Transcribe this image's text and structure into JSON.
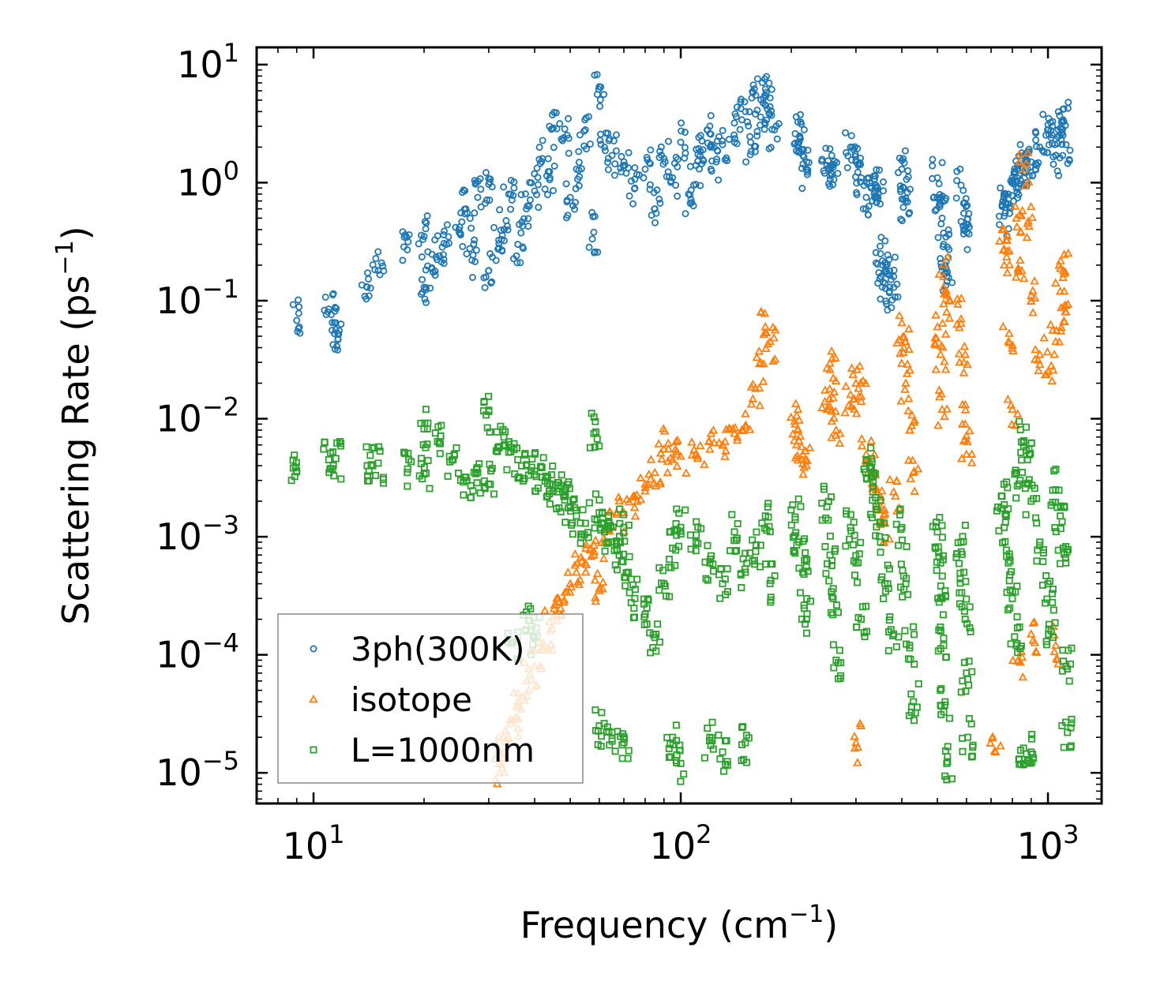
{
  "chart_data": {
    "type": "scatter",
    "xscale": "log",
    "yscale": "log",
    "xlabel": "Frequency (cm",
    "xlabel_sup": "−1",
    "xlabel_end": ")",
    "ylabel": "Scattering Rate (ps",
    "ylabel_sup": "−1",
    "ylabel_end": ")",
    "xlim": [
      7.0,
      1400
    ],
    "ylim": [
      5.5e-06,
      14
    ],
    "x_ticks": [
      {
        "value": 10,
        "base": "10",
        "exp": "1"
      },
      {
        "value": 100,
        "base": "10",
        "exp": "2"
      },
      {
        "value": 1000,
        "base": "10",
        "exp": "3"
      }
    ],
    "y_ticks": [
      {
        "value": 10,
        "base": "10",
        "exp": "1"
      },
      {
        "value": 1,
        "base": "10",
        "exp": "0"
      },
      {
        "value": 0.1,
        "base": "10",
        "exp": "−1"
      },
      {
        "value": 0.01,
        "base": "10",
        "exp": "−2"
      },
      {
        "value": 0.001,
        "base": "10",
        "exp": "−3"
      },
      {
        "value": 0.0001,
        "base": "10",
        "exp": "−4"
      },
      {
        "value": 1e-05,
        "base": "10",
        "exp": "−5"
      }
    ],
    "legend_position": "lower-left",
    "series": [
      {
        "name": "3ph(300K)",
        "marker": "circle",
        "color": "#1f77b4",
        "points": [
          [
            9,
            0.068
          ],
          [
            11,
            0.085
          ],
          [
            11.5,
            0.065
          ],
          [
            11.5,
            0.057
          ],
          [
            14,
            0.13
          ],
          [
            15,
            0.18
          ],
          [
            18,
            0.27
          ],
          [
            20,
            0.35
          ],
          [
            20,
            0.13
          ],
          [
            21,
            0.19
          ],
          [
            22,
            0.24
          ],
          [
            23,
            0.3
          ],
          [
            25,
            0.42
          ],
          [
            26,
            0.6
          ],
          [
            27,
            0.22
          ],
          [
            28,
            0.75
          ],
          [
            30,
            0.18
          ],
          [
            30,
            0.97
          ],
          [
            32,
            0.28
          ],
          [
            33,
            0.4
          ],
          [
            34,
            0.8
          ],
          [
            36,
            0.3
          ],
          [
            38,
            0.6
          ],
          [
            40,
            0.85
          ],
          [
            42,
            1.6
          ],
          [
            44,
            1.1
          ],
          [
            45,
            2.9
          ],
          [
            48,
            2.4
          ],
          [
            50,
            0.75
          ],
          [
            52,
            1.3
          ],
          [
            55,
            2.8
          ],
          [
            58,
            0.38
          ],
          [
            60,
            6.5
          ],
          [
            62,
            2.0
          ],
          [
            65,
            1.7
          ],
          [
            70,
            1.5
          ],
          [
            75,
            0.9
          ],
          [
            80,
            1.3
          ],
          [
            85,
            0.6
          ],
          [
            90,
            1.6
          ],
          [
            95,
            1.1
          ],
          [
            100,
            2.2
          ],
          [
            105,
            0.8
          ],
          [
            110,
            1.4
          ],
          [
            115,
            1.9
          ],
          [
            120,
            2.6
          ],
          [
            125,
            1.5
          ],
          [
            130,
            2.1
          ],
          [
            140,
            3.2
          ],
          [
            150,
            4.0
          ],
          [
            155,
            2.2
          ],
          [
            160,
            5.5
          ],
          [
            165,
            3.6
          ],
          [
            170,
            6.2
          ],
          [
            175,
            4.4
          ],
          [
            180,
            2.8
          ],
          [
            205,
            2.6
          ],
          [
            210,
            2.2
          ],
          [
            215,
            1.7
          ],
          [
            220,
            1.3
          ],
          [
            250,
            1.4
          ],
          [
            255,
            1.15
          ],
          [
            260,
            1.35
          ],
          [
            290,
            2.0
          ],
          [
            300,
            1.5
          ],
          [
            310,
            1.1
          ],
          [
            320,
            0.75
          ],
          [
            330,
            0.9
          ],
          [
            340,
            0.95
          ],
          [
            345,
            0.8
          ],
          [
            350,
            0.25
          ],
          [
            355,
            0.2
          ],
          [
            360,
            0.14
          ],
          [
            370,
            0.12
          ],
          [
            380,
            0.16
          ],
          [
            400,
            1.3
          ],
          [
            405,
            0.9
          ],
          [
            410,
            0.7
          ],
          [
            500,
            1.1
          ],
          [
            510,
            0.75
          ],
          [
            515,
            0.5
          ],
          [
            520,
            0.3
          ],
          [
            525,
            0.2
          ],
          [
            530,
            0.16
          ],
          [
            580,
            0.95
          ],
          [
            590,
            0.55
          ],
          [
            595,
            0.4
          ],
          [
            750,
            0.65
          ],
          [
            760,
            0.52
          ],
          [
            780,
            0.8
          ],
          [
            800,
            1.1
          ],
          [
            820,
            0.9
          ],
          [
            840,
            1.2
          ],
          [
            860,
            1.7
          ],
          [
            880,
            1.3
          ],
          [
            900,
            1.5
          ],
          [
            950,
            2.0
          ],
          [
            1000,
            3.1
          ],
          [
            1020,
            2.4
          ],
          [
            1050,
            1.7
          ],
          [
            1080,
            2.9
          ],
          [
            1100,
            3.4
          ],
          [
            1120,
            2.1
          ]
        ]
      },
      {
        "name": "isotope",
        "marker": "triangle",
        "color": "#ff7f0e",
        "points": [
          [
            32,
            1.2e-05
          ],
          [
            33,
            1.5e-05
          ],
          [
            34,
            2e-05
          ],
          [
            35,
            2.8e-05
          ],
          [
            36,
            4e-05
          ],
          [
            38,
            6e-05
          ],
          [
            40,
            8e-05
          ],
          [
            42,
            0.00011
          ],
          [
            44,
            0.00016
          ],
          [
            46,
            0.00022
          ],
          [
            48,
            0.00028
          ],
          [
            50,
            0.0004
          ],
          [
            52,
            0.0005
          ],
          [
            55,
            0.0006
          ],
          [
            58,
            0.0007
          ],
          [
            60,
            0.00035
          ],
          [
            62,
            0.0009
          ],
          [
            65,
            0.0012
          ],
          [
            70,
            0.0016
          ],
          [
            75,
            0.0022
          ],
          [
            80,
            0.0028
          ],
          [
            85,
            0.0035
          ],
          [
            90,
            0.0055
          ],
          [
            95,
            0.0045
          ],
          [
            100,
            0.0048
          ],
          [
            110,
            0.005
          ],
          [
            120,
            0.0055
          ],
          [
            130,
            0.006
          ],
          [
            140,
            0.0075
          ],
          [
            150,
            0.011
          ],
          [
            160,
            0.018
          ],
          [
            165,
            0.03
          ],
          [
            170,
            0.06
          ],
          [
            175,
            0.045
          ],
          [
            205,
            0.009
          ],
          [
            210,
            0.0065
          ],
          [
            215,
            0.005
          ],
          [
            220,
            0.004
          ],
          [
            250,
            0.012
          ],
          [
            255,
            0.026
          ],
          [
            260,
            0.015
          ],
          [
            265,
            0.008
          ],
          [
            290,
            0.016
          ],
          [
            300,
            0.02
          ],
          [
            310,
            0.014
          ],
          [
            320,
            0.005
          ],
          [
            330,
            0.0035
          ],
          [
            340,
            0.0025
          ],
          [
            350,
            0.0018
          ],
          [
            360,
            0.0013
          ],
          [
            380,
            0.0024
          ],
          [
            400,
            0.065
          ],
          [
            405,
            0.04
          ],
          [
            410,
            0.02
          ],
          [
            420,
            0.008
          ],
          [
            430,
            0.0035
          ],
          [
            500,
            0.06
          ],
          [
            510,
            0.035
          ],
          [
            515,
            0.012
          ],
          [
            520,
            0.16
          ],
          [
            530,
            0.08
          ],
          [
            580,
            0.07
          ],
          [
            590,
            0.03
          ],
          [
            595,
            0.009
          ],
          [
            600,
            0.005
          ],
          [
            750,
            0.4
          ],
          [
            760,
            0.2
          ],
          [
            780,
            0.045
          ],
          [
            800,
            0.012
          ],
          [
            820,
            0.5
          ],
          [
            840,
            0.22
          ],
          [
            860,
            1.3
          ],
          [
            880,
            0.45
          ],
          [
            900,
            0.11
          ],
          [
            950,
            0.035
          ],
          [
            1000,
            0.025
          ],
          [
            1050,
            0.045
          ],
          [
            1080,
            0.12
          ],
          [
            1100,
            0.18
          ],
          [
            1120,
            0.08
          ],
          [
            300,
            1.8e-05
          ],
          [
            720,
            1.5e-05
          ],
          [
            830,
            9e-05
          ],
          [
            900,
            0.00015
          ],
          [
            1050,
            0.00012
          ]
        ]
      },
      {
        "name": "L=1000nm",
        "marker": "square",
        "color": "#2ca02c",
        "points": [
          [
            9,
            0.0036
          ],
          [
            11,
            0.0045
          ],
          [
            11.5,
            0.0046
          ],
          [
            14,
            0.004
          ],
          [
            15,
            0.0042
          ],
          [
            18,
            0.0035
          ],
          [
            20,
            0.0034
          ],
          [
            20,
            0.0082
          ],
          [
            22,
            0.0062
          ],
          [
            24,
            0.0045
          ],
          [
            26,
            0.0032
          ],
          [
            28,
            0.0035
          ],
          [
            30,
            0.0115
          ],
          [
            30,
            0.0028
          ],
          [
            32,
            0.0058
          ],
          [
            34,
            0.0052
          ],
          [
            36,
            0.0045
          ],
          [
            38,
            0.004
          ],
          [
            40,
            0.0036
          ],
          [
            42,
            0.0032
          ],
          [
            44,
            0.0028
          ],
          [
            46,
            0.0024
          ],
          [
            48,
            0.0022
          ],
          [
            50,
            0.0018
          ],
          [
            52,
            0.0015
          ],
          [
            55,
            0.0013
          ],
          [
            58,
            0.0075
          ],
          [
            60,
            0.0016
          ],
          [
            62,
            0.0011
          ],
          [
            65,
            0.0009
          ],
          [
            68,
            0.0007
          ],
          [
            70,
            0.0012
          ],
          [
            72,
            0.0005
          ],
          [
            75,
            0.0003
          ],
          [
            80,
            0.00022
          ],
          [
            85,
            0.00014
          ],
          [
            90,
            0.0004
          ],
          [
            95,
            0.0008
          ],
          [
            100,
            0.0012
          ],
          [
            110,
            0.0009
          ],
          [
            120,
            0.0006
          ],
          [
            130,
            0.0004
          ],
          [
            140,
            0.0011
          ],
          [
            150,
            0.0005
          ],
          [
            160,
            0.00075
          ],
          [
            170,
            0.0015
          ],
          [
            175,
            0.0004
          ],
          [
            205,
            0.0014
          ],
          [
            210,
            0.0009
          ],
          [
            215,
            0.0005
          ],
          [
            220,
            0.0002
          ],
          [
            250,
            0.0018
          ],
          [
            255,
            0.0007
          ],
          [
            260,
            0.0003
          ],
          [
            265,
            9e-05
          ],
          [
            290,
            0.0012
          ],
          [
            300,
            0.0006
          ],
          [
            310,
            0.0002
          ],
          [
            320,
            0.0045
          ],
          [
            330,
            0.0032
          ],
          [
            340,
            0.0018
          ],
          [
            350,
            0.0009
          ],
          [
            360,
            0.0004
          ],
          [
            380,
            0.00015
          ],
          [
            400,
            0.0012
          ],
          [
            410,
            0.0004
          ],
          [
            420,
            0.00012
          ],
          [
            430,
            4e-05
          ],
          [
            500,
            0.0011
          ],
          [
            510,
            0.0006
          ],
          [
            515,
            0.0003
          ],
          [
            520,
            0.00012
          ],
          [
            525,
            4e-05
          ],
          [
            530,
            1.2e-05
          ],
          [
            580,
            0.0009
          ],
          [
            590,
            0.0005
          ],
          [
            595,
            0.0002
          ],
          [
            600,
            7e-05
          ],
          [
            605,
            2e-05
          ],
          [
            750,
            0.0022
          ],
          [
            760,
            0.0012
          ],
          [
            780,
            0.0006
          ],
          [
            800,
            0.0003
          ],
          [
            820,
            0.00012
          ],
          [
            840,
            0.003
          ],
          [
            860,
            0.0065
          ],
          [
            880,
            0.0045
          ],
          [
            900,
            0.002
          ],
          [
            950,
            0.0009
          ],
          [
            1000,
            0.0004
          ],
          [
            1020,
            0.00016
          ],
          [
            1050,
            0.0025
          ],
          [
            1080,
            0.0015
          ],
          [
            1100,
            0.0008
          ],
          [
            1120,
            8e-05
          ],
          [
            1130,
            2.2e-05
          ],
          [
            35,
            0.00013
          ],
          [
            38,
            0.00023
          ],
          [
            40,
            0.00014
          ],
          [
            60,
            2.5e-05
          ],
          [
            65,
            2.2e-05
          ],
          [
            70,
            1.8e-05
          ],
          [
            95,
            2e-05
          ],
          [
            100,
            1.2e-05
          ],
          [
            120,
            2e-05
          ],
          [
            130,
            1.5e-05
          ],
          [
            150,
            1.8e-05
          ],
          [
            860,
            1.2e-05
          ],
          [
            900,
            1.5e-05
          ]
        ]
      }
    ]
  }
}
